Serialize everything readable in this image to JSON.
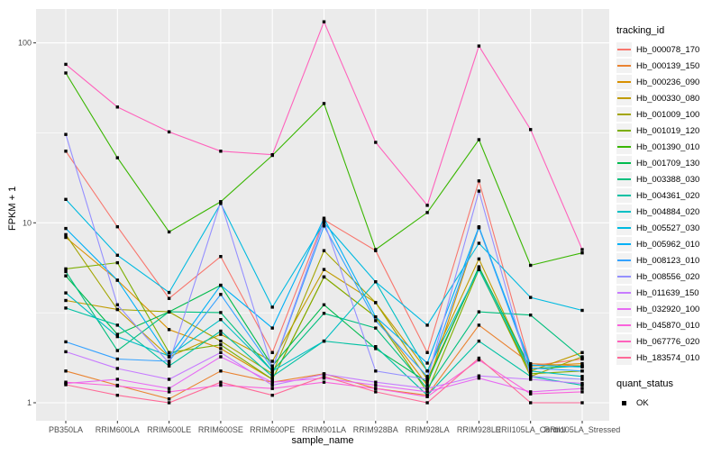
{
  "ui": {
    "panel_bg": "#EBEBEB",
    "grid_color": "#FFFFFF",
    "tick_color": "#333333",
    "tick_label_color": "#4D4D4D",
    "point_color": "#000000",
    "legend_key_bg": "#F2F2F2"
  },
  "chart_data": {
    "type": "line",
    "title": "",
    "xlabel": "sample_name",
    "ylabel": "FPKM + 1",
    "y_scale": "log10",
    "y_ticks": [
      "1",
      "10",
      "100"
    ],
    "y_tick_values": [
      1,
      10,
      100
    ],
    "y_minor_values": [
      3.162,
      31.623
    ],
    "ylim": [
      0.8,
      155
    ],
    "grid": "on",
    "legend_position": "right",
    "point_shape": "filled-square",
    "categories": [
      "PB350LA",
      "RRIM600LA",
      "RRIM600LE",
      "RRIM600SE",
      "RRIM600PE",
      "RRIM901LA",
      "RRIM928BA",
      "RRIM928LA",
      "RRIM928LE",
      "RRII105LA_Control",
      "RRII105LA_Stressed"
    ],
    "legend": {
      "title": "tracking_id",
      "quant_title": "quant_status",
      "quant_items": [
        {
          "label": "OK"
        }
      ]
    },
    "series": [
      {
        "name": "Hb_000078_170",
        "color": "#F8766D",
        "values": [
          25,
          9.5,
          3.8,
          6.5,
          1.9,
          10.4,
          7.0,
          1.9,
          17.1,
          1.6,
          1.75
        ]
      },
      {
        "name": "Hb_000139_150",
        "color": "#EA8331",
        "values": [
          1.5,
          1.25,
          1.05,
          1.5,
          1.3,
          1.45,
          1.2,
          1.1,
          2.7,
          1.65,
          1.6
        ]
      },
      {
        "name": "Hb_000236_090",
        "color": "#D89000",
        "values": [
          8.3,
          4.8,
          2.55,
          2.0,
          1.35,
          5.0,
          3.0,
          1.25,
          9.4,
          1.6,
          1.65
        ]
      },
      {
        "name": "Hb_000330_080",
        "color": "#C09B00",
        "values": [
          3.7,
          3.3,
          1.8,
          2.4,
          1.7,
          5.5,
          3.6,
          1.5,
          6.3,
          1.5,
          1.9
        ]
      },
      {
        "name": "Hb_001009_100",
        "color": "#A3A500",
        "values": [
          8.6,
          3.3,
          3.2,
          2.2,
          1.45,
          7.0,
          3.6,
          1.35,
          5.6,
          1.4,
          1.8
        ]
      },
      {
        "name": "Hb_001019_120",
        "color": "#7CAE00",
        "values": [
          5.55,
          6.0,
          1.9,
          2.1,
          1.35,
          5.0,
          3.0,
          1.15,
          5.5,
          1.45,
          1.5
        ]
      },
      {
        "name": "Hb_001390_010",
        "color": "#39B600",
        "values": [
          68,
          23,
          8.9,
          13.1,
          23.7,
          46,
          7.1,
          11.4,
          29,
          5.8,
          6.8
        ]
      },
      {
        "name": "Hb_001709_130",
        "color": "#00BB4E",
        "values": [
          5.07,
          2.4,
          3.2,
          4.5,
          1.6,
          3.5,
          2.0,
          1.3,
          5.7,
          1.55,
          1.6
        ]
      },
      {
        "name": "Hb_003388_030",
        "color": "#00BF7D",
        "values": [
          5.36,
          1.95,
          3.2,
          3.17,
          1.5,
          3.14,
          2.6,
          1.2,
          3.2,
          3.07,
          1.77
        ]
      },
      {
        "name": "Hb_004361_020",
        "color": "#00C1A3",
        "values": [
          3.36,
          2.7,
          1.6,
          2.5,
          1.4,
          2.2,
          2.05,
          1.1,
          2.2,
          1.4,
          1.25
        ]
      },
      {
        "name": "Hb_004884_020",
        "color": "#00BFC4",
        "values": [
          4.08,
          2.33,
          1.82,
          2.9,
          1.5,
          2.2,
          4.7,
          1.5,
          5.5,
          1.5,
          1.4
        ]
      },
      {
        "name": "Hb_005527_030",
        "color": "#00BAE0",
        "values": [
          13.5,
          6.6,
          4.1,
          12.8,
          3.4,
          10.0,
          4.7,
          2.7,
          7.7,
          3.85,
          3.26
        ]
      },
      {
        "name": "Hb_005962_010",
        "color": "#00B0F6",
        "values": [
          9.3,
          4.8,
          1.8,
          4.5,
          2.6,
          10.6,
          3.0,
          1.66,
          9.5,
          1.62,
          1.58
        ]
      },
      {
        "name": "Hb_008123_010",
        "color": "#35A2FF",
        "values": [
          2.18,
          1.75,
          1.7,
          4.0,
          1.55,
          9.6,
          2.86,
          1.4,
          9.4,
          1.56,
          1.5
        ]
      },
      {
        "name": "Hb_008556_020",
        "color": "#9590FF",
        "values": [
          31,
          3.5,
          1.66,
          13.1,
          1.55,
          10.2,
          1.5,
          1.35,
          15.0,
          1.4,
          1.35
        ]
      },
      {
        "name": "Hb_011639_150",
        "color": "#C77CFF",
        "values": [
          1.92,
          1.55,
          1.35,
          1.9,
          1.25,
          1.44,
          1.3,
          1.2,
          1.41,
          1.35,
          1.28
        ]
      },
      {
        "name": "Hb_032920_100",
        "color": "#E76BF3",
        "values": [
          1.28,
          1.35,
          1.2,
          1.8,
          1.3,
          1.37,
          1.25,
          1.15,
          1.37,
          1.15,
          1.2
        ]
      },
      {
        "name": "Hb_045870_010",
        "color": "#FA62DB",
        "values": [
          1.3,
          1.24,
          1.15,
          1.25,
          1.2,
          1.3,
          1.2,
          1.08,
          1.73,
          1.12,
          1.15
        ]
      },
      {
        "name": "Hb_067776_020",
        "color": "#FF62BC",
        "values": [
          76,
          44,
          32,
          25,
          23.9,
          131,
          28,
          12.5,
          96,
          33,
          7.1
        ]
      },
      {
        "name": "Hb_183574_010",
        "color": "#FF6A98",
        "values": [
          1.26,
          1.1,
          1.0,
          1.3,
          1.1,
          1.4,
          1.15,
          1.0,
          1.77,
          1.0,
          1.0
        ]
      }
    ]
  }
}
